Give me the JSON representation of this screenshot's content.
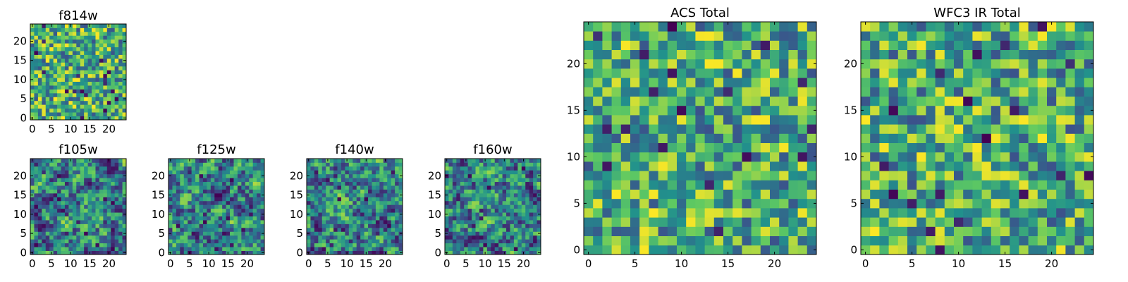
{
  "figure": {
    "background_color": "#ffffff",
    "colormap": "viridis",
    "colormap_stops": [
      "#440154",
      "#3b528b",
      "#21918c",
      "#5ec962",
      "#fde725"
    ]
  },
  "chart_data": [
    {
      "type": "heatmap",
      "title": "f814w",
      "grid_size": 25,
      "x_ticks": [
        "0",
        "5",
        "10",
        "15",
        "20"
      ],
      "y_ticks": [
        "0",
        "5",
        "10",
        "15",
        "20"
      ],
      "xlim": [
        -0.5,
        24.5
      ],
      "ylim": [
        -0.5,
        24.5
      ],
      "seed": 814,
      "contrast": "high"
    },
    {
      "type": "heatmap",
      "title": "f105w",
      "grid_size": 25,
      "x_ticks": [
        "0",
        "5",
        "10",
        "15",
        "20"
      ],
      "y_ticks": [
        "0",
        "5",
        "10",
        "15",
        "20"
      ],
      "xlim": [
        -0.5,
        24.5
      ],
      "ylim": [
        -0.5,
        24.5
      ],
      "seed": 105,
      "contrast": "smooth"
    },
    {
      "type": "heatmap",
      "title": "f125w",
      "grid_size": 25,
      "x_ticks": [
        "0",
        "5",
        "10",
        "15",
        "20"
      ],
      "y_ticks": [
        "0",
        "5",
        "10",
        "15",
        "20"
      ],
      "xlim": [
        -0.5,
        24.5
      ],
      "ylim": [
        -0.5,
        24.5
      ],
      "seed": 125,
      "contrast": "smooth"
    },
    {
      "type": "heatmap",
      "title": "f140w",
      "grid_size": 25,
      "x_ticks": [
        "0",
        "5",
        "10",
        "15",
        "20"
      ],
      "y_ticks": [
        "0",
        "5",
        "10",
        "15",
        "20"
      ],
      "xlim": [
        -0.5,
        24.5
      ],
      "ylim": [
        -0.5,
        24.5
      ],
      "seed": 140,
      "contrast": "smooth"
    },
    {
      "type": "heatmap",
      "title": "f160w",
      "grid_size": 25,
      "x_ticks": [
        "0",
        "5",
        "10",
        "15",
        "20"
      ],
      "y_ticks": [
        "0",
        "5",
        "10",
        "15",
        "20"
      ],
      "xlim": [
        -0.5,
        24.5
      ],
      "ylim": [
        -0.5,
        24.5
      ],
      "seed": 160,
      "contrast": "smooth"
    },
    {
      "type": "heatmap",
      "title": "ACS Total",
      "grid_size": 25,
      "x_ticks": [
        "0",
        "5",
        "10",
        "15",
        "20"
      ],
      "y_ticks": [
        "0",
        "5",
        "10",
        "15",
        "20"
      ],
      "xlim": [
        -0.5,
        24.5
      ],
      "ylim": [
        -0.5,
        24.5
      ],
      "seed": 901,
      "contrast": "high"
    },
    {
      "type": "heatmap",
      "title": "WFC3 IR Total",
      "grid_size": 25,
      "x_ticks": [
        "0",
        "5",
        "10",
        "15",
        "20"
      ],
      "y_ticks": [
        "0",
        "5",
        "10",
        "15",
        "20"
      ],
      "xlim": [
        -0.5,
        24.5
      ],
      "ylim": [
        -0.5,
        24.5
      ],
      "seed": 902,
      "contrast": "high"
    }
  ]
}
